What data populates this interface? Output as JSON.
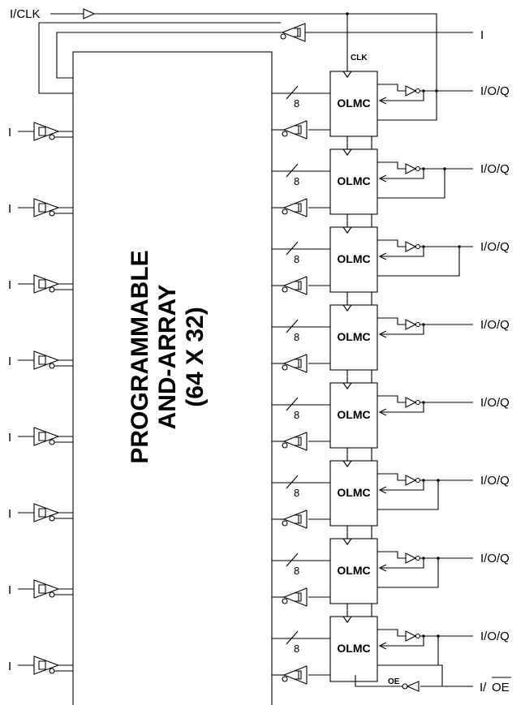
{
  "labels": {
    "clk_input": "I/CLK",
    "top_input": "I",
    "clk": "CLK",
    "left_input": "I",
    "io": "I/O/Q",
    "oe": "OE",
    "oe_pin_prefix": "I/",
    "oe_pin_bar": "OE",
    "bus_width": "8"
  },
  "array": {
    "line1": "PROGRAMMABLE",
    "line2": "AND-ARRAY",
    "line3": "(64 X 32)"
  },
  "olmc_label": "OLMC",
  "olmc_count": 8,
  "left_input_count": 8,
  "colors": {
    "array_fill": "#dedede",
    "line": "#000000"
  }
}
